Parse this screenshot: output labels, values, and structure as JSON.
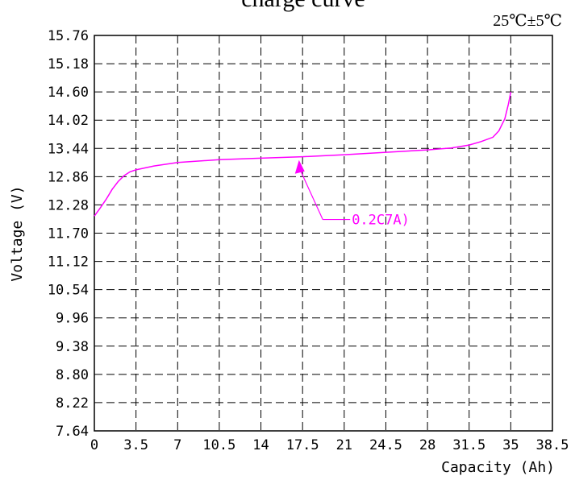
{
  "chart_data": {
    "type": "line",
    "title": "charge curve",
    "condition": "25℃±5℃",
    "xlabel": "Capacity (Ah)",
    "ylabel": "Voltage (V)",
    "xlim": [
      0,
      38.5
    ],
    "ylim": [
      7.64,
      15.76
    ],
    "x_ticks": [
      "0",
      "3.5",
      "7",
      "10.5",
      "14",
      "17.5",
      "21",
      "24.5",
      "28",
      "31.5",
      "35",
      "38.5"
    ],
    "y_ticks": [
      "15.76",
      "15.18",
      "14.60",
      "14.02",
      "13.44",
      "12.86",
      "12.28",
      "11.70",
      "11.12",
      "10.54",
      "9.96",
      "9.38",
      "8.80",
      "8.22",
      "7.64"
    ],
    "grid": true,
    "series": [
      {
        "name": "0.2C7A)",
        "color": "#ff00ff",
        "points": [
          [
            0,
            12.05
          ],
          [
            0.5,
            12.22
          ],
          [
            1,
            12.4
          ],
          [
            1.5,
            12.6
          ],
          [
            2,
            12.76
          ],
          [
            2.5,
            12.88
          ],
          [
            3,
            12.96
          ],
          [
            3.5,
            13.0
          ],
          [
            5,
            13.08
          ],
          [
            7,
            13.15
          ],
          [
            10.5,
            13.21
          ],
          [
            14,
            13.24
          ],
          [
            17.5,
            13.27
          ],
          [
            21,
            13.31
          ],
          [
            24.5,
            13.36
          ],
          [
            28,
            13.41
          ],
          [
            30,
            13.45
          ],
          [
            31.5,
            13.51
          ],
          [
            32.5,
            13.58
          ],
          [
            33.5,
            13.67
          ],
          [
            34,
            13.8
          ],
          [
            34.5,
            14.05
          ],
          [
            34.8,
            14.35
          ],
          [
            35,
            14.6
          ]
        ]
      }
    ],
    "annotation": {
      "text": "0.2C7A)",
      "points_to": [
        17.2,
        13.25
      ]
    }
  }
}
